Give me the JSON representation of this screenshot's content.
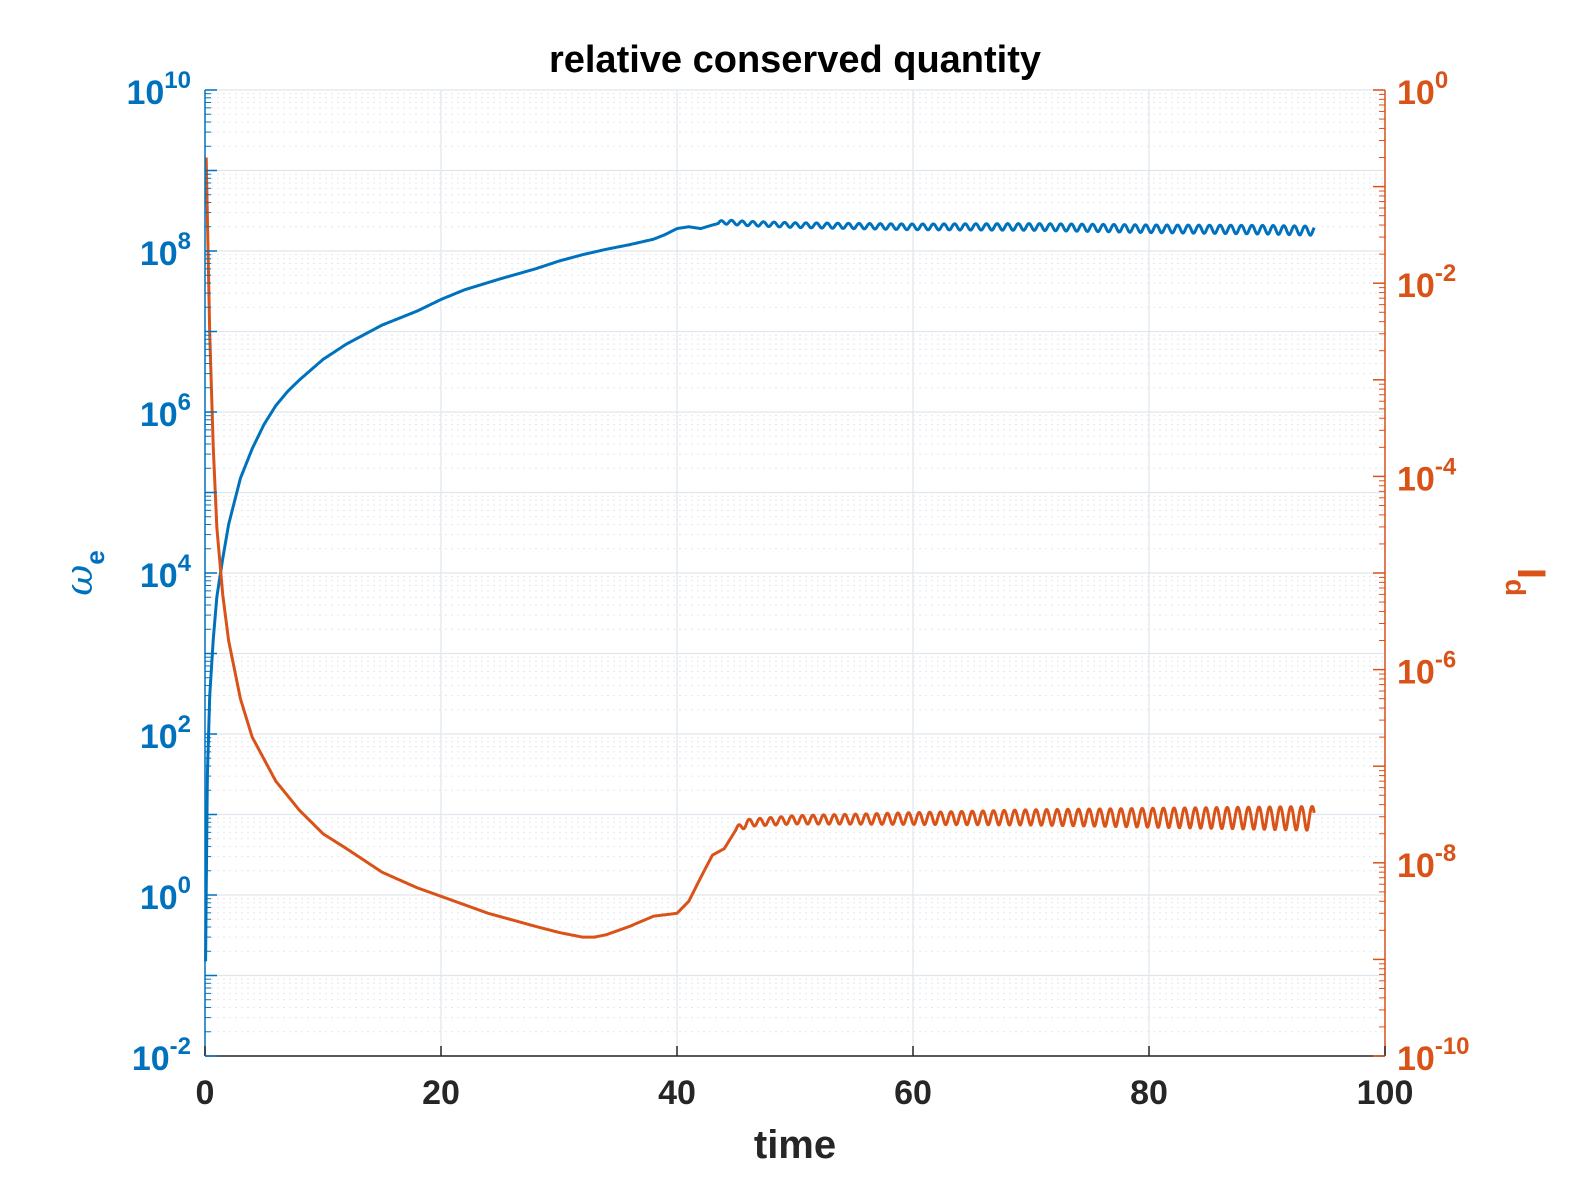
{
  "chart_data": {
    "type": "line",
    "title": "relative conserved quantity",
    "xlabel": "time",
    "xlim": [
      0,
      100
    ],
    "x_ticks": [
      "0",
      "20",
      "40",
      "60",
      "80",
      "100"
    ],
    "y_left": {
      "label_base": "ω",
      "label_sub": "e",
      "scale": "log",
      "ylim": [
        0.01,
        10000000000
      ],
      "ticks": [
        {
          "base": "10",
          "exp": "-2"
        },
        {
          "base": "10",
          "exp": "0"
        },
        {
          "base": "10",
          "exp": "2"
        },
        {
          "base": "10",
          "exp": "4"
        },
        {
          "base": "10",
          "exp": "6"
        },
        {
          "base": "10",
          "exp": "8"
        },
        {
          "base": "10",
          "exp": "10"
        }
      ],
      "color": "#0072BD"
    },
    "y_right": {
      "label_base": "I",
      "label_sub": "d",
      "scale": "log",
      "ylim": [
        1e-10,
        1
      ],
      "ticks": [
        {
          "base": "10",
          "exp": "-10"
        },
        {
          "base": "10",
          "exp": "-8"
        },
        {
          "base": "10",
          "exp": "-6"
        },
        {
          "base": "10",
          "exp": "-4"
        },
        {
          "base": "10",
          "exp": "-2"
        },
        {
          "base": "10",
          "exp": "0"
        }
      ],
      "color": "#D95319"
    },
    "grid": true,
    "series": [
      {
        "axis": "left",
        "color": "#0072BD",
        "points": [
          [
            0.05,
            0.15
          ],
          [
            0.1,
            1
          ],
          [
            0.2,
            30
          ],
          [
            0.4,
            300
          ],
          [
            0.7,
            1500
          ],
          [
            1,
            5000
          ],
          [
            1.5,
            15000
          ],
          [
            2,
            40000
          ],
          [
            3,
            150000
          ],
          [
            4,
            350000
          ],
          [
            5,
            700000
          ],
          [
            6,
            1200000
          ],
          [
            7,
            1800000
          ],
          [
            8,
            2500000
          ],
          [
            10,
            4500000
          ],
          [
            12,
            7000000
          ],
          [
            15,
            12000000
          ],
          [
            18,
            18000000
          ],
          [
            20,
            25000000
          ],
          [
            22,
            33000000
          ],
          [
            25,
            45000000
          ],
          [
            28,
            60000000
          ],
          [
            30,
            75000000
          ],
          [
            32,
            90000000
          ],
          [
            34,
            105000000
          ],
          [
            36,
            120000000
          ],
          [
            38,
            140000000
          ],
          [
            39,
            160000000
          ],
          [
            40,
            190000000
          ],
          [
            41,
            200000000
          ],
          [
            42,
            190000000
          ],
          [
            43,
            210000000
          ],
          [
            44,
            230000000
          ],
          [
            46,
            220000000
          ],
          [
            50,
            210000000
          ],
          [
            60,
            200000000
          ],
          [
            70,
            200000000
          ],
          [
            80,
            190000000
          ],
          [
            90,
            185000000
          ],
          [
            94,
            180000000
          ]
        ],
        "oscillation": {
          "from": 43.5,
          "to": 94,
          "period": 0.9,
          "rel_amp_start": 0.06,
          "rel_amp_end": 0.13
        }
      },
      {
        "axis": "right",
        "color": "#D95319",
        "points": [
          [
            0.1,
            0.2
          ],
          [
            0.2,
            0.05
          ],
          [
            0.4,
            0.003
          ],
          [
            0.7,
            0.0002
          ],
          [
            1,
            3e-05
          ],
          [
            1.5,
            6e-06
          ],
          [
            2,
            2e-06
          ],
          [
            3,
            5e-07
          ],
          [
            4,
            2e-07
          ],
          [
            6,
            7e-08
          ],
          [
            8,
            3.5e-08
          ],
          [
            10,
            2e-08
          ],
          [
            12,
            1.4e-08
          ],
          [
            15,
            8e-09
          ],
          [
            18,
            5.5e-09
          ],
          [
            20,
            4.5e-09
          ],
          [
            24,
            3e-09
          ],
          [
            28,
            2.2e-09
          ],
          [
            30,
            1.9e-09
          ],
          [
            32,
            1.7e-09
          ],
          [
            33,
            1.7e-09
          ],
          [
            34,
            1.8e-09
          ],
          [
            36,
            2.2e-09
          ],
          [
            38,
            2.8e-09
          ],
          [
            40,
            3e-09
          ],
          [
            41,
            4e-09
          ],
          [
            42,
            7e-09
          ],
          [
            43,
            1.2e-08
          ],
          [
            44,
            1.4e-08
          ],
          [
            45,
            2.2e-08
          ],
          [
            46,
            2.6e-08
          ],
          [
            48,
            2.7e-08
          ],
          [
            50,
            2.8e-08
          ],
          [
            60,
            2.9e-08
          ],
          [
            70,
            3e-08
          ],
          [
            80,
            3e-08
          ],
          [
            90,
            3e-08
          ],
          [
            94,
            3e-08
          ]
        ],
        "oscillation": {
          "from": 45,
          "to": 94,
          "period": 0.9,
          "rel_amp_start": 0.08,
          "rel_amp_end": 0.28
        }
      }
    ]
  }
}
